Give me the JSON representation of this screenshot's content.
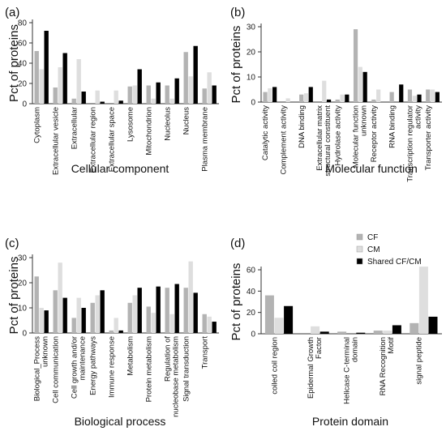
{
  "colors": {
    "CF": "#b3b3b3",
    "CM": "#dedede",
    "Shared CF/CM": "#000000"
  },
  "legend": {
    "items": [
      "CF",
      "CM",
      "Shared CF/CM"
    ]
  },
  "chart_data": [
    {
      "panel": "(a)",
      "type": "bar",
      "title": "Cellular component",
      "ylabel": "Pct of proteins",
      "ylim": [
        0,
        80
      ],
      "yticks": [
        0,
        20,
        40,
        60,
        80
      ],
      "categories": [
        "Cytoplasm",
        "Extracellular vesicle",
        "Extracellular",
        "Extracellular region",
        "Extracellular space",
        "Lysosome",
        "Mitochondrion",
        "Nucleolus",
        "Nucleus",
        "Plasma membrane"
      ],
      "series": [
        {
          "name": "CF",
          "values": [
            52,
            16,
            5,
            0,
            0,
            17,
            18,
            18,
            51,
            15
          ]
        },
        {
          "name": "CM",
          "values": [
            34,
            36,
            44,
            13,
            13,
            18,
            5,
            5,
            27,
            31
          ]
        },
        {
          "name": "Shared CF/CM",
          "values": [
            72,
            50,
            12,
            2,
            3,
            34,
            21,
            25,
            57,
            18
          ]
        }
      ]
    },
    {
      "panel": "(b)",
      "type": "bar",
      "title": "Molecular function",
      "ylabel": "Pct of proteins",
      "ylim": [
        0,
        30
      ],
      "yticks": [
        0,
        10,
        20,
        30
      ],
      "categories": [
        "Catalytic activity",
        "Complement activity",
        "DNA binding",
        "Extracellular matrix structural constituent",
        "Hydrolase activity",
        "Molecular function unknown",
        "Receptor activity",
        "RNA binding",
        "Transcription regulator activity",
        "Transporter activity"
      ],
      "series": [
        {
          "name": "CF",
          "values": [
            4,
            0,
            3,
            0,
            1,
            29,
            1,
            4,
            5,
            5
          ]
        },
        {
          "name": "CM",
          "values": [
            5.5,
            1.5,
            3.5,
            8.5,
            3,
            14,
            5,
            0,
            2.5,
            5
          ]
        },
        {
          "name": "Shared CF/CM",
          "values": [
            6,
            0,
            6,
            1,
            3,
            12,
            0,
            7,
            3,
            4
          ]
        }
      ]
    },
    {
      "panel": "(c)",
      "type": "bar",
      "title": "Biological process",
      "ylabel": "Pct of proteins",
      "ylim": [
        0,
        30
      ],
      "yticks": [
        0,
        10,
        20,
        30
      ],
      "categories": [
        "Biological_Process unknown",
        "Cell communication",
        "Cell growth and/or maintenance",
        "Energy pathways",
        "Immune response",
        "Metabolism",
        "Protein metabolism",
        "Regulation of nucleobase metabolism",
        "Signal transduction",
        "Transport"
      ],
      "series": [
        {
          "name": "CF",
          "values": [
            22.5,
            17,
            6,
            12,
            1,
            12,
            10.5,
            18,
            18,
            7.5
          ]
        },
        {
          "name": "CM",
          "values": [
            10,
            28,
            14,
            15,
            6,
            15,
            8,
            7.5,
            28.5,
            6.5
          ]
        },
        {
          "name": "Shared CF/CM",
          "values": [
            9,
            14,
            10,
            17,
            1,
            18,
            18.5,
            19.5,
            16,
            4.5
          ]
        }
      ]
    },
    {
      "panel": "(d)",
      "type": "bar",
      "title": "Protein domain",
      "ylabel": "Pct of proteins",
      "ylim": [
        0,
        60
      ],
      "yticks": [
        0,
        20,
        40,
        60
      ],
      "categories": [
        "coiled coil region",
        "Epidermal Growth Factor",
        "Helicase C-terminal domain",
        "RNA Recognition Motif",
        "signal peptide"
      ],
      "series": [
        {
          "name": "CF",
          "values": [
            36,
            0,
            2,
            3,
            10
          ]
        },
        {
          "name": "CM",
          "values": [
            15,
            7,
            0,
            3,
            63
          ]
        },
        {
          "name": "Shared CF/CM",
          "values": [
            26,
            2,
            1,
            8,
            16
          ]
        }
      ]
    }
  ]
}
